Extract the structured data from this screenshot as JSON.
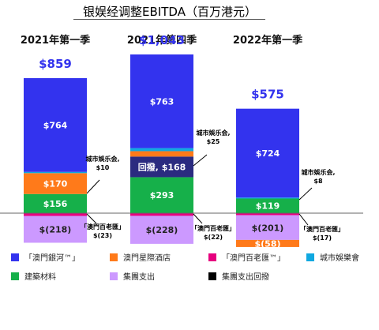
{
  "chart_data": {
    "type": "bar",
    "title": "银娱经调整EBITDA（百万港元）",
    "xlabel": "",
    "ylabel": "",
    "categories": [
      "2021年第一季",
      "2021年第四季",
      "2022年第一季"
    ],
    "totals": [
      "$859",
      "$1,043",
      "$575"
    ],
    "series": [
      {
        "name": "「澳門銀河™」",
        "color": "#3333ee",
        "values": [
          764,
          763,
          724
        ],
        "labels": [
          "$764",
          "$763",
          "$724"
        ]
      },
      {
        "name": "澳門星際酒店",
        "color": "#ff7a1a",
        "values": [
          170,
          44,
          -58
        ],
        "labels": [
          "$170",
          "$44",
          "$(58)"
        ]
      },
      {
        "name": "「澳門百老匯™」",
        "color": "#e6007e",
        "values": [
          -23,
          -22,
          -17
        ],
        "labels": [
          "$(23)",
          "$(22)",
          "$(17)"
        ]
      },
      {
        "name": "城市娛樂會",
        "color": "#10a8e0",
        "values": [
          10,
          25,
          8
        ],
        "labels": [
          "$10",
          "$25",
          "$8"
        ]
      },
      {
        "name": "建築材料",
        "color": "#16b04a",
        "values": [
          156,
          293,
          119
        ],
        "labels": [
          "$156",
          "$293",
          "$119"
        ]
      },
      {
        "name": "集團支出",
        "color": "#cc99ff",
        "values": [
          -218,
          -228,
          -201
        ],
        "labels": [
          "$(218)",
          "$(228)",
          "$(201)"
        ]
      },
      {
        "name": "集團支出回撥",
        "color": "#2b2b80",
        "values": [
          0,
          168,
          0
        ],
        "labels": [
          "",
          "回撥, $168",
          ""
        ]
      }
    ],
    "annotations": [
      {
        "bar": 0,
        "text": [
          "城市娛乐会,",
          "$10"
        ]
      },
      {
        "bar": 0,
        "text": [
          "「澳門百老匯」",
          "$(23)"
        ]
      },
      {
        "bar": 1,
        "text": [
          "城市娛乐会,",
          "$25"
        ]
      },
      {
        "bar": 1,
        "text": [
          "「澳門百老匯」",
          "$(22)"
        ]
      },
      {
        "bar": 2,
        "text": [
          "城市娛乐会,",
          "$8"
        ]
      },
      {
        "bar": 2,
        "text": [
          "「澳門百老匯」",
          "$(17)"
        ]
      }
    ],
    "legend": [
      {
        "label": "「澳門銀河™」",
        "color": "#3333ee"
      },
      {
        "label": "澳門星際酒店",
        "color": "#ff7a1a"
      },
      {
        "label": "「澳門百老匯™」",
        "color": "#e6007e"
      },
      {
        "label": "城市娛樂會",
        "color": "#10a8e0"
      },
      {
        "label": "建築材料",
        "color": "#16b04a"
      },
      {
        "label": "集團支出",
        "color": "#cc99ff"
      },
      {
        "label": "集團支出回撥",
        "color": "#000000"
      }
    ],
    "legend_position": "bottom",
    "grid": false
  }
}
